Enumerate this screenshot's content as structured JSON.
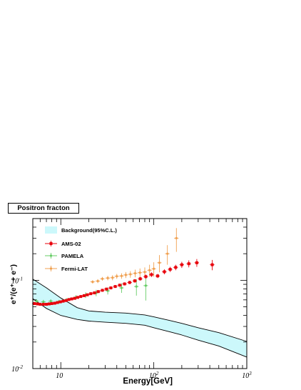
{
  "chart_data": {
    "type": "scatter",
    "title": "Positron fracton",
    "xlabel": "Energy[GeV]",
    "ylabel": "e⁺/(e⁺ + e⁻)",
    "x_scale": "log",
    "y_scale": "log",
    "xlim": [
      5,
      1000
    ],
    "ylim": [
      0.01,
      0.5
    ],
    "x_ticks": [
      {
        "value": 10,
        "base": "10",
        "exp": ""
      },
      {
        "value": 100,
        "base": "10",
        "exp": "2"
      },
      {
        "value": 1000,
        "base": "10",
        "exp": "3"
      }
    ],
    "y_ticks": [
      {
        "value": 0.01,
        "base": "10",
        "exp": "-2"
      },
      {
        "value": 0.1,
        "base": "10",
        "exp": "-1"
      }
    ],
    "grid": false,
    "legend_position": "top-left",
    "band": {
      "name": "Background(95%C.L.)",
      "color": "#ccf8fb",
      "x": [
        5,
        7,
        10,
        15,
        20,
        30,
        50,
        80,
        100,
        150,
        200,
        300,
        500,
        1000
      ],
      "lower": [
        0.062,
        0.048,
        0.04,
        0.036,
        0.0345,
        0.0335,
        0.0325,
        0.031,
        0.029,
        0.026,
        0.024,
        0.021,
        0.018,
        0.0135
      ],
      "upper": [
        0.103,
        0.082,
        0.063,
        0.049,
        0.045,
        0.0435,
        0.0425,
        0.0405,
        0.0385,
        0.035,
        0.0325,
        0.029,
        0.0255,
        0.0203
      ]
    },
    "series": [
      {
        "name": "AMS-02",
        "color": "#e8000b",
        "marker": "square",
        "x": [
          5.2,
          5.6,
          6.0,
          6.5,
          7.0,
          7.5,
          8.0,
          8.6,
          9.2,
          9.9,
          10.6,
          11.4,
          12.2,
          13.1,
          14.1,
          15.2,
          16.4,
          17.8,
          19.3,
          21.0,
          23.0,
          25.3,
          28.0,
          31.0,
          34.5,
          38.5,
          43.0,
          48.5,
          55.0,
          62.5,
          71.5,
          82.0,
          94.5,
          110,
          130,
          150,
          172,
          200,
          238,
          290,
          425
        ],
        "y": [
          0.0545,
          0.054,
          0.0535,
          0.0535,
          0.0535,
          0.054,
          0.0545,
          0.055,
          0.056,
          0.057,
          0.058,
          0.059,
          0.0605,
          0.0615,
          0.0625,
          0.064,
          0.0655,
          0.067,
          0.0685,
          0.0705,
          0.072,
          0.0745,
          0.077,
          0.0795,
          0.082,
          0.085,
          0.088,
          0.091,
          0.0945,
          0.0985,
          0.104,
          0.11,
          0.116,
          0.112,
          0.125,
          0.133,
          0.14,
          0.15,
          0.154,
          0.158,
          0.15
        ],
        "err": [
          0.0012,
          0.0012,
          0.0012,
          0.0012,
          0.0012,
          0.0012,
          0.0012,
          0.0012,
          0.0012,
          0.0013,
          0.0013,
          0.0013,
          0.0014,
          0.0014,
          0.0015,
          0.0015,
          0.0016,
          0.0017,
          0.0018,
          0.0019,
          0.002,
          0.0022,
          0.0024,
          0.0026,
          0.0028,
          0.003,
          0.0033,
          0.0036,
          0.004,
          0.0045,
          0.005,
          0.006,
          0.007,
          0.006,
          0.008,
          0.009,
          0.01,
          0.012,
          0.014,
          0.016,
          0.02
        ]
      },
      {
        "name": "PAMELA",
        "color": "#66cc66",
        "marker": "circle",
        "x": [
          5.5,
          6.5,
          7.8,
          9.5,
          11.5,
          14.5,
          18.5,
          24,
          32,
          45,
          65,
          82
        ],
        "y": [
          0.058,
          0.057,
          0.058,
          0.057,
          0.06,
          0.064,
          0.068,
          0.072,
          0.076,
          0.082,
          0.085,
          0.087
        ],
        "err": [
          0.003,
          0.003,
          0.003,
          0.003,
          0.003,
          0.004,
          0.005,
          0.006,
          0.007,
          0.01,
          0.018,
          0.028
        ]
      },
      {
        "name": "Fermi-LAT",
        "color": "#f0a050",
        "marker": "circle",
        "x": [
          22,
          25,
          28,
          32,
          36,
          40,
          45,
          50,
          56,
          63,
          71,
          80,
          90,
          100,
          115,
          140,
          175
        ],
        "y": [
          0.096,
          0.098,
          0.104,
          0.106,
          0.107,
          0.111,
          0.112,
          0.115,
          0.117,
          0.12,
          0.122,
          0.124,
          0.13,
          0.135,
          0.158,
          0.2,
          0.3
        ],
        "err": [
          0.004,
          0.005,
          0.005,
          0.006,
          0.007,
          0.007,
          0.008,
          0.009,
          0.01,
          0.012,
          0.014,
          0.016,
          0.02,
          0.025,
          0.035,
          0.05,
          0.09
        ]
      }
    ]
  }
}
